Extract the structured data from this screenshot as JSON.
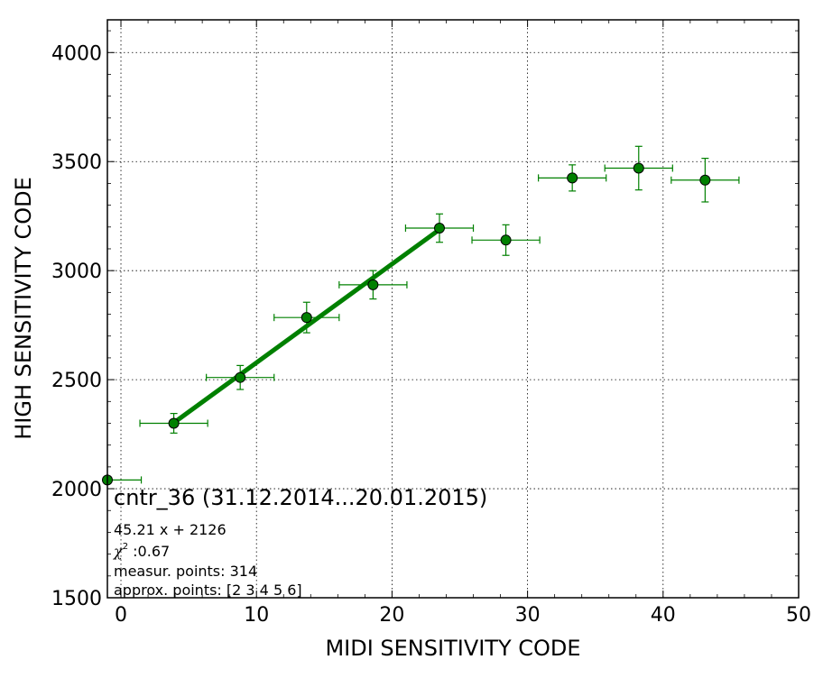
{
  "chart_data": {
    "type": "scatter",
    "title": "cntr_36 (31.12.2014...20.01.2015)",
    "xlabel": "MIDI SENSITIVITY CODE",
    "ylabel": "HIGH SENSITIVITY CODE",
    "xlim": [
      -1,
      50
    ],
    "ylim": [
      1500,
      4150
    ],
    "xticks": [
      0,
      10,
      20,
      30,
      40,
      50
    ],
    "yticks": [
      1500,
      2000,
      2500,
      3000,
      3500,
      4000
    ],
    "grid": true,
    "annotations": {
      "fit_equation": "45.21 x + 2126",
      "chi2_symbol": "χ",
      "chi2_exponent": "2",
      "chi2_value": " :0.67",
      "measur_points": "measur. points: 314",
      "approx_points": "approx. points: [2 3 4 5 6]"
    },
    "series": [
      {
        "kind": "points",
        "color": "#008000",
        "points": [
          {
            "x": -1.0,
            "y": 2040,
            "xerr": 2.5,
            "yerr": 0
          },
          {
            "x": 3.9,
            "y": 2300,
            "xerr": 2.5,
            "yerr": 45
          },
          {
            "x": 8.8,
            "y": 2510,
            "xerr": 2.5,
            "yerr": 55
          },
          {
            "x": 13.7,
            "y": 2785,
            "xerr": 2.4,
            "yerr": 70
          },
          {
            "x": 18.6,
            "y": 2935,
            "xerr": 2.5,
            "yerr": 65
          },
          {
            "x": 23.5,
            "y": 3195,
            "xerr": 2.5,
            "yerr": 65
          },
          {
            "x": 28.4,
            "y": 3140,
            "xerr": 2.5,
            "yerr": 70
          },
          {
            "x": 33.3,
            "y": 3425,
            "xerr": 2.5,
            "yerr": 60
          },
          {
            "x": 38.2,
            "y": 3470,
            "xerr": 2.5,
            "yerr": 100
          },
          {
            "x": 43.1,
            "y": 3415,
            "xerr": 2.5,
            "yerr": 100
          }
        ]
      },
      {
        "kind": "fit",
        "color": "#008000",
        "slope": 45.21,
        "intercept": 2126,
        "x_range": [
          3.9,
          23.5
        ]
      }
    ]
  }
}
